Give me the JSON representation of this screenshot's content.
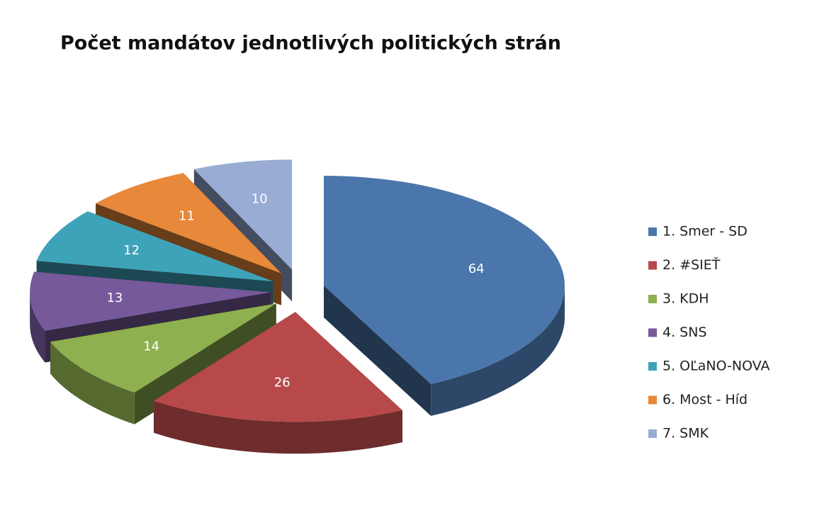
{
  "chart_data": {
    "type": "pie",
    "title": "Počet mandátov jednotlivých politických strán",
    "categories": [
      "1. Smer - SD",
      "2. #SIEŤ",
      "3. KDH",
      "4. SNS",
      "5. OĽaNO-NOVA",
      "6. Most - Híd",
      "7. SMK"
    ],
    "values": [
      64,
      26,
      14,
      13,
      12,
      11,
      10
    ],
    "colors": [
      "#4a76ab",
      "#b8494a",
      "#8fb04e",
      "#75599a",
      "#3ea3b9",
      "#e8883a",
      "#98acd4"
    ],
    "legend": "right"
  }
}
